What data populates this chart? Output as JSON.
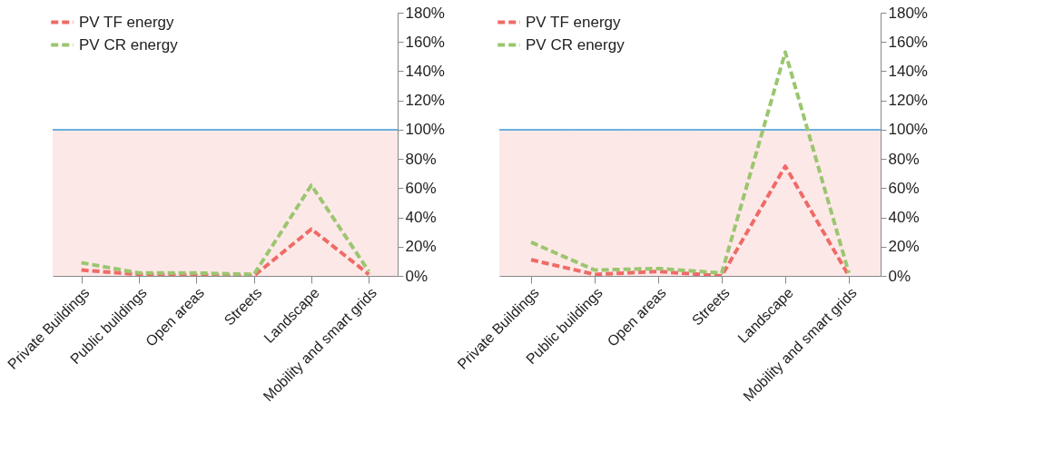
{
  "chart_data": [
    {
      "type": "line",
      "categories": [
        "Private Buildings",
        "Public buildings",
        "Open areas",
        "Streets",
        "Landscape",
        "Mobility and smart grids"
      ],
      "series": [
        {
          "name": "PV TF energy",
          "color": "#ee6b66",
          "values": [
            0.04,
            0.01,
            0.005,
            0.0,
            0.32,
            0.01
          ]
        },
        {
          "name": "PV CR energy",
          "color": "#9bc66f",
          "values": [
            0.09,
            0.02,
            0.02,
            0.01,
            0.62,
            0.03
          ]
        }
      ],
      "ylim": [
        0,
        1.8
      ],
      "yticks": [
        {
          "value": 0,
          "label": "0%"
        },
        {
          "value": 0.2,
          "label": "20%"
        },
        {
          "value": 0.4,
          "label": "40%"
        },
        {
          "value": 0.6,
          "label": "60%"
        },
        {
          "value": 0.8,
          "label": "80%"
        },
        {
          "value": 1.0,
          "label": "100%"
        },
        {
          "value": 1.2,
          "label": "120%"
        },
        {
          "value": 1.4,
          "label": "140%"
        },
        {
          "value": 1.6,
          "label": "160%"
        },
        {
          "value": 1.8,
          "label": "180%"
        }
      ],
      "ref_lines": [
        {
          "axis": "y",
          "value": 1.0,
          "color": "#3a9bd5"
        }
      ],
      "bands": [
        {
          "axis": "y",
          "from": 0,
          "to": 1.0,
          "color": "#fde8e8"
        }
      ],
      "grid": false,
      "legend": "top left",
      "line_style": "dashed",
      "marker": "none"
    },
    {
      "type": "line",
      "categories": [
        "Private Buildings",
        "Public buildings",
        "Open areas",
        "Streets",
        "Landscape",
        "Mobility and smart grids"
      ],
      "series": [
        {
          "name": "PV TF energy",
          "color": "#ee6b66",
          "values": [
            0.11,
            0.01,
            0.03,
            0.0,
            0.75,
            0.0
          ]
        },
        {
          "name": "PV CR energy",
          "color": "#9bc66f",
          "values": [
            0.23,
            0.04,
            0.05,
            0.02,
            1.53,
            0.02
          ]
        }
      ],
      "ylim": [
        0,
        1.8
      ],
      "yticks": [
        {
          "value": 0,
          "label": "0%"
        },
        {
          "value": 0.2,
          "label": "20%"
        },
        {
          "value": 0.4,
          "label": "40%"
        },
        {
          "value": 0.6,
          "label": "60%"
        },
        {
          "value": 0.8,
          "label": "80%"
        },
        {
          "value": 1.0,
          "label": "100%"
        },
        {
          "value": 1.2,
          "label": "120%"
        },
        {
          "value": 1.4,
          "label": "140%"
        },
        {
          "value": 1.6,
          "label": "160%"
        },
        {
          "value": 1.8,
          "label": "180%"
        }
      ],
      "ref_lines": [
        {
          "axis": "y",
          "value": 1.0,
          "color": "#3a9bd5"
        }
      ],
      "bands": [
        {
          "axis": "y",
          "from": 0,
          "to": 1.0,
          "color": "#fde8e8"
        }
      ],
      "grid": false,
      "legend": "top left",
      "line_style": "dashed",
      "marker": "none"
    }
  ]
}
